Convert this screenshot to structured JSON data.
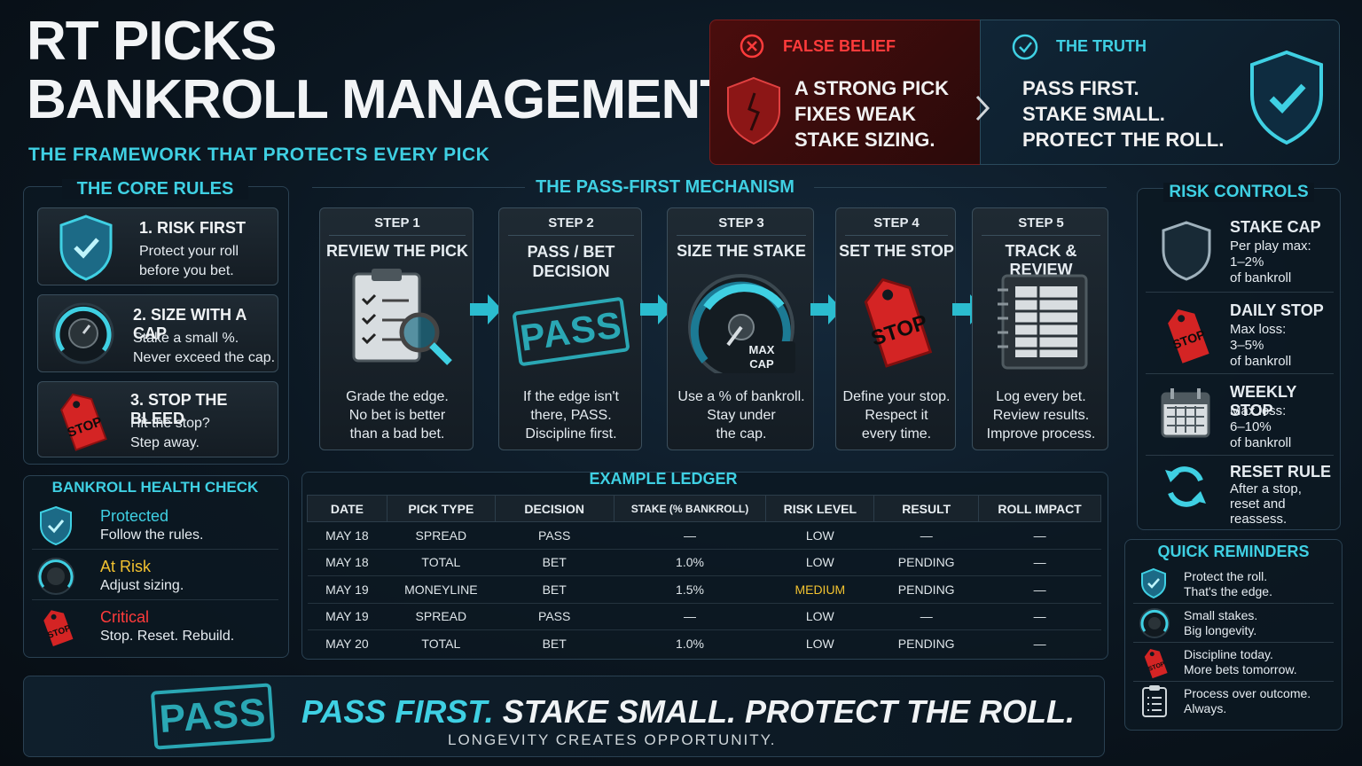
{
  "header": {
    "title_line1": "RT PICKS",
    "title_line2": "BANKROLL MANAGEMENT",
    "subtitle": "THE FRAMEWORK THAT PROTECTS EVERY PICK"
  },
  "belief": {
    "false_label": "FALSE BELIEF",
    "false_text": [
      "A STRONG PICK",
      "FIXES WEAK",
      "STAKE SIZING."
    ],
    "truth_label": "THE TRUTH",
    "truth_text": [
      "PASS FIRST.",
      "STAKE SMALL.",
      "PROTECT THE ROLL."
    ]
  },
  "core_rules": {
    "title": "THE CORE RULES",
    "items": [
      {
        "title": "1. RISK FIRST",
        "line1": "Protect your roll",
        "line2": "before you bet."
      },
      {
        "title": "2. SIZE WITH A CAP",
        "line1": "Stake a small %.",
        "line2": "Never exceed the cap."
      },
      {
        "title": "3. STOP THE BLEED",
        "line1": "Hit the stop?",
        "line2": "Step away."
      }
    ]
  },
  "health": {
    "title": "BANKROLL HEALTH CHECK",
    "items": [
      {
        "status": "Protected",
        "desc": "Follow the rules.",
        "color": "#3fd0e3"
      },
      {
        "status": "At Risk",
        "desc": "Adjust sizing.",
        "color": "#f2c230"
      },
      {
        "status": "Critical",
        "desc": "Stop. Reset. Rebuild.",
        "color": "#ff3b3b"
      }
    ]
  },
  "mechanism": {
    "title": "THE PASS-FIRST MECHANISM",
    "steps": [
      {
        "step": "STEP 1",
        "name": "REVIEW THE PICK",
        "lines": [
          "Grade the edge.",
          "No bet is better",
          "than a bad bet."
        ]
      },
      {
        "step": "STEP 2",
        "name": "PASS / BET DECISION",
        "name1": "PASS / BET",
        "name2": "DECISION",
        "lines": [
          "If the edge isn't",
          "there, PASS.",
          "Discipline first."
        ]
      },
      {
        "step": "STEP 3",
        "name": "SIZE THE STAKE",
        "lines": [
          "Use a % of bankroll.",
          "Stay under",
          "the cap."
        ]
      },
      {
        "step": "STEP 4",
        "name": "SET THE STOP",
        "lines": [
          "Define your stop.",
          "Respect it",
          "every time."
        ]
      },
      {
        "step": "STEP 5",
        "name": "TRACK & REVIEW",
        "lines": [
          "Log every bet.",
          "Review results.",
          "Improve process."
        ]
      }
    ],
    "pass_stamp": "PASS",
    "gauge_label1": "MAX",
    "gauge_label2": "CAP",
    "stop_label": "STOP"
  },
  "ledger": {
    "title": "EXAMPLE LEDGER",
    "columns": [
      "DATE",
      "PICK TYPE",
      "DECISION",
      "STAKE (% BANKROLL)",
      "RISK LEVEL",
      "RESULT",
      "ROLL IMPACT"
    ],
    "rows": [
      [
        "MAY 18",
        "SPREAD",
        "PASS",
        "—",
        "LOW",
        "—",
        "—"
      ],
      [
        "MAY 18",
        "TOTAL",
        "BET",
        "1.0%",
        "LOW",
        "PENDING",
        "—"
      ],
      [
        "MAY 19",
        "MONEYLINE",
        "BET",
        "1.5%",
        "MEDIUM",
        "PENDING",
        "—"
      ],
      [
        "MAY 19",
        "SPREAD",
        "PASS",
        "—",
        "LOW",
        "—",
        "—"
      ],
      [
        "MAY 20",
        "TOTAL",
        "BET",
        "1.0%",
        "LOW",
        "PENDING",
        "—"
      ]
    ]
  },
  "risk_controls": {
    "title": "RISK CONTROLS",
    "items": [
      {
        "title": "STAKE CAP",
        "lines": [
          "Per play max:",
          "1–2%",
          "of bankroll"
        ]
      },
      {
        "title": "DAILY STOP",
        "lines": [
          "Max loss:",
          "3–5%",
          "of bankroll"
        ]
      },
      {
        "title": "WEEKLY STOP",
        "lines": [
          "Max loss:",
          "6–10%",
          "of bankroll"
        ]
      },
      {
        "title": "RESET RULE",
        "lines": [
          "After a stop,",
          "reset and",
          "reassess."
        ]
      }
    ]
  },
  "reminders": {
    "title": "QUICK REMINDERS",
    "items": [
      {
        "line1": "Protect the roll.",
        "line2": "That's the edge."
      },
      {
        "line1": "Small stakes.",
        "line2": "Big longevity."
      },
      {
        "line1": "Discipline today.",
        "line2": "More bets tomorrow."
      },
      {
        "line1": "Process over outcome.",
        "line2": "Always."
      }
    ]
  },
  "footer": {
    "stamp": "PASS",
    "slogan_cyan": "PASS FIRST.",
    "slogan_white": " STAKE SMALL. PROTECT THE ROLL.",
    "tagline": "LONGEVITY CREATES OPPORTUNITY."
  },
  "colors": {
    "accent": "#3fd0e3",
    "danger": "#e03030",
    "warning": "#f2c230"
  }
}
